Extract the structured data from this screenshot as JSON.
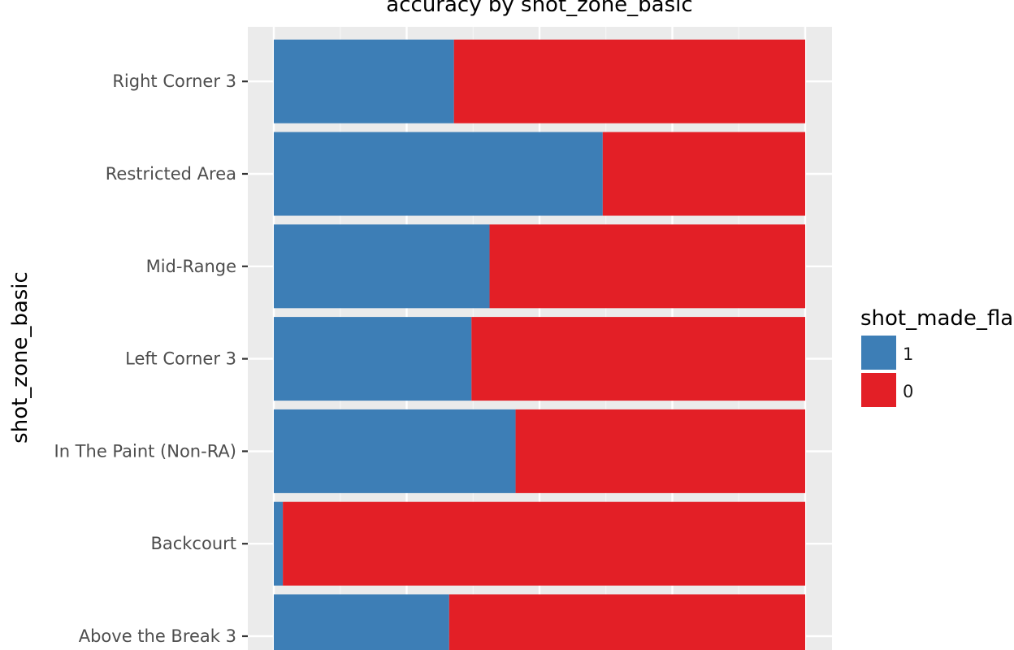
{
  "chart_data": {
    "type": "bar",
    "orientation": "horizontal",
    "stacked": "fill",
    "title": "accuracy by shot_zone_basic",
    "xlabel": "",
    "ylabel": "shot_zone_basic",
    "xlim": [
      0,
      1
    ],
    "categories": [
      "Above the Break 3",
      "Backcourt",
      "In The Paint (Non-RA)",
      "Left Corner 3",
      "Mid-Range",
      "Restricted Area",
      "Right Corner 3"
    ],
    "series": [
      {
        "name": "1",
        "color": "#3d7eb6",
        "values": [
          0.33,
          0.017,
          0.455,
          0.372,
          0.406,
          0.619,
          0.339
        ]
      },
      {
        "name": "0",
        "color": "#e31f26",
        "values": [
          0.67,
          0.983,
          0.545,
          0.628,
          0.594,
          0.381,
          0.661
        ]
      }
    ],
    "legend": {
      "title": "shot_made_flag",
      "position": "right"
    },
    "grid": true
  }
}
